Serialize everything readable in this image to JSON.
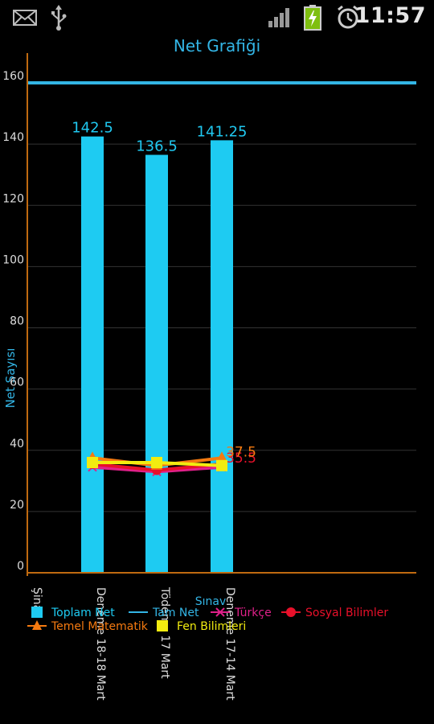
{
  "status_bar": {
    "time": "11:57",
    "icons": [
      "mail-icon",
      "usb-icon",
      "signal-icon",
      "battery-charging-icon",
      "alarm-icon"
    ]
  },
  "chart_data": {
    "type": "bar",
    "title": "Net Grafiği",
    "xlabel": "Sınav",
    "ylabel": "Net Sayısı",
    "ylim": [
      0,
      170
    ],
    "yticks": [
      0,
      20,
      40,
      60,
      80,
      100,
      120,
      140,
      160
    ],
    "categories": [
      "Deneme 18-18 Mart",
      "Tödeme 17 Mart",
      "Deneme 17-14 Mart"
    ],
    "extra_xtick": "Şina",
    "grid": true,
    "legend_position": "bottom",
    "series": [
      {
        "name": "Toplam Net",
        "kind": "bar",
        "color": "#1ecbf2",
        "values": [
          142.5,
          136.5,
          141.25
        ],
        "labels": [
          "142.5",
          "136.5",
          "141.25"
        ]
      },
      {
        "name": "Tam Net",
        "kind": "hline",
        "color": "#33b5e5",
        "value": 160
      },
      {
        "name": "Türkçe",
        "kind": "line",
        "marker": "x",
        "color": "#e0208a",
        "values": [
          34.5,
          33,
          34.5
        ]
      },
      {
        "name": "Sosyal Bilimler",
        "kind": "line",
        "marker": "circle",
        "color": "#e8102a",
        "values": [
          35.5,
          33.5,
          35.5
        ],
        "labels": [
          "",
          "",
          "35.5"
        ]
      },
      {
        "name": "Temel Matematik",
        "kind": "line",
        "marker": "triangle",
        "color": "#f57a10",
        "values": [
          37.5,
          35,
          37.5
        ],
        "labels": [
          "",
          "",
          "37.5"
        ]
      },
      {
        "name": "Fen Bilimleri",
        "kind": "line",
        "marker": "square",
        "color": "#f2ec10",
        "values": [
          36,
          36,
          35
        ]
      }
    ]
  }
}
